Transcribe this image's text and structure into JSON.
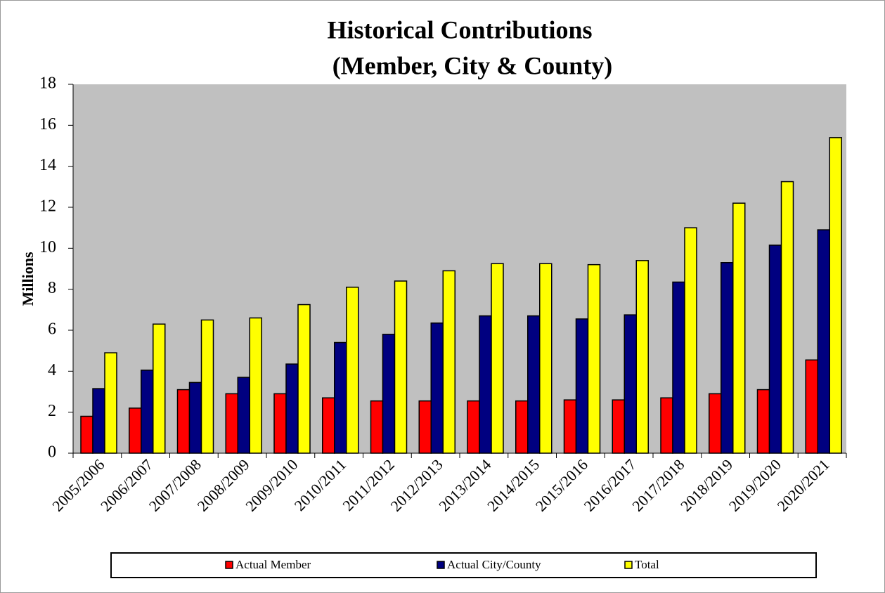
{
  "chart_data": {
    "type": "bar",
    "title": "Historical Contributions",
    "subtitle": "(Member, City & County)",
    "y_label": "Millions",
    "categories": [
      "2005/2006",
      "2006/2007",
      "2007/2008",
      "2008/2009",
      "2009/2010",
      "2010/2011",
      "2011/2012",
      "2012/2013",
      "2013/2014",
      "2014/2015",
      "2015/2016",
      "2016/2017",
      "2017/2018",
      "2018/2019",
      "2019/2020",
      "2020/2021"
    ],
    "series": [
      {
        "name": "Actual Member",
        "color": "#ff0000",
        "values": [
          1.8,
          2.2,
          3.1,
          2.9,
          2.9,
          2.7,
          2.55,
          2.55,
          2.55,
          2.55,
          2.6,
          2.6,
          2.7,
          2.9,
          3.1,
          4.55
        ]
      },
      {
        "name": "Actual City/County",
        "color": "#000080",
        "values": [
          3.15,
          4.05,
          3.45,
          3.7,
          4.35,
          5.4,
          5.8,
          6.35,
          6.7,
          6.7,
          6.55,
          6.75,
          8.35,
          9.3,
          10.15,
          10.9
        ]
      },
      {
        "name": "Total",
        "color": "#ffff00",
        "values": [
          4.9,
          6.3,
          6.5,
          6.6,
          7.25,
          8.1,
          8.4,
          8.9,
          9.25,
          9.25,
          9.2,
          9.4,
          11.0,
          12.2,
          13.25,
          15.4
        ]
      }
    ],
    "ylim": [
      0,
      18
    ],
    "yticks": [
      0,
      2,
      4,
      6,
      8,
      10,
      12,
      14,
      16,
      18
    ],
    "plot_background": "#c0c0c0",
    "grid": false,
    "legend": "bottom"
  }
}
